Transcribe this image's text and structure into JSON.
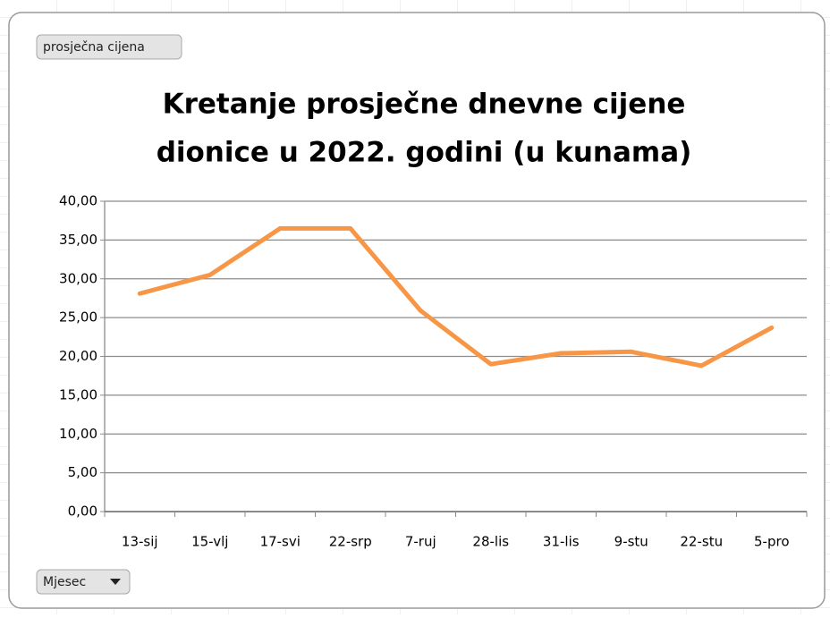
{
  "chart_data": {
    "type": "line",
    "title": [
      "Kretanje prosječne dnevne cijene",
      "dionice  u 2022. godini (u kunama)"
    ],
    "value_field_button": "prosječna cijena",
    "axis_field_button": "Mjesec",
    "categories": [
      "13-sij",
      "15-vlj",
      "17-svi",
      "22-srp",
      "7-ruj",
      "28-lis",
      "31-lis",
      "9-stu",
      "22-stu",
      "5-pro"
    ],
    "series": [
      {
        "name": "prosječna cijena",
        "color": "#f79646",
        "values": [
          28.1,
          30.5,
          36.5,
          36.5,
          25.9,
          19.0,
          20.4,
          20.6,
          18.8,
          23.7
        ]
      }
    ],
    "ylim": [
      0,
      40
    ],
    "yticks": [
      {
        "value": 0,
        "label": "0,00"
      },
      {
        "value": 5,
        "label": "5,00"
      },
      {
        "value": 10,
        "label": "10,00"
      },
      {
        "value": 15,
        "label": "15,00"
      },
      {
        "value": 20,
        "label": "20,00"
      },
      {
        "value": 25,
        "label": "25,00"
      },
      {
        "value": 30,
        "label": "30,00"
      },
      {
        "value": 35,
        "label": "35,00"
      },
      {
        "value": 40,
        "label": "40,00"
      }
    ],
    "grid": true
  }
}
